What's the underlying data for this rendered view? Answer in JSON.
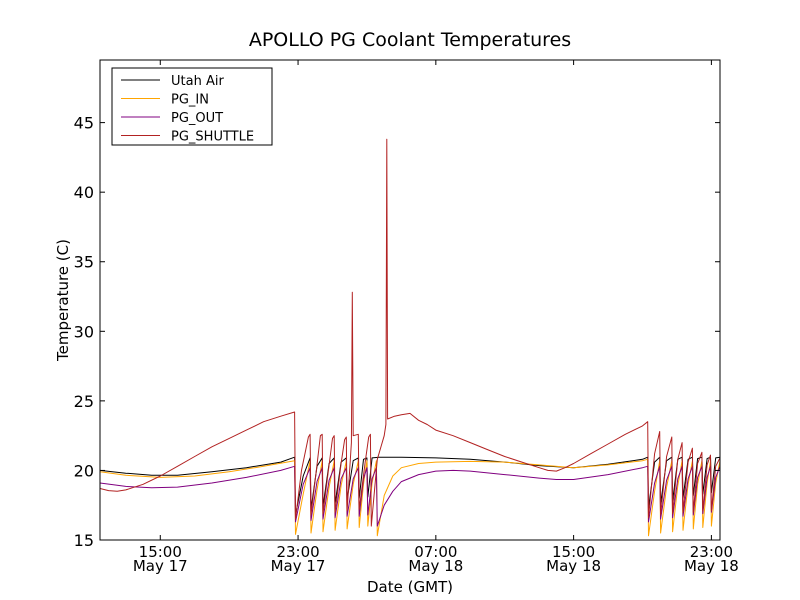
{
  "chart_data": {
    "type": "line",
    "title": "APOLLO PG Coolant Temperatures",
    "xlabel": "Date (GMT)",
    "ylabel": "Temperature (C)",
    "x_unit": "hours since May 17 00:00 GMT",
    "xlim": [
      11.5,
      47.5
    ],
    "ylim": [
      15,
      49.5
    ],
    "grid": false,
    "legend_position": "top-left",
    "x_ticks": [
      {
        "value": 15,
        "time": "15:00",
        "date": "May 17"
      },
      {
        "value": 23,
        "time": "23:00",
        "date": "May 17"
      },
      {
        "value": 31,
        "time": "07:00",
        "date": "May 18"
      },
      {
        "value": 39,
        "time": "15:00",
        "date": "May 18"
      },
      {
        "value": 47,
        "time": "23:00",
        "date": "May 18"
      }
    ],
    "y_ticks": [
      15,
      20,
      25,
      30,
      35,
      40,
      45
    ],
    "series": [
      {
        "name": "Utah Air",
        "color": "#000000",
        "points": [
          [
            11.5,
            20.0
          ],
          [
            13,
            19.8
          ],
          [
            14.5,
            19.65
          ],
          [
            16,
            19.65
          ],
          [
            18,
            19.9
          ],
          [
            20,
            20.2
          ],
          [
            22,
            20.6
          ],
          [
            22.8,
            20.95
          ],
          [
            22.85,
            16.8
          ],
          [
            23.3,
            19.6
          ],
          [
            23.7,
            20.9
          ],
          [
            23.75,
            17.2
          ],
          [
            24.1,
            20.3
          ],
          [
            24.4,
            20.9
          ],
          [
            24.45,
            17.4
          ],
          [
            24.8,
            20.5
          ],
          [
            25.1,
            20.9
          ],
          [
            25.15,
            17.6
          ],
          [
            25.5,
            20.6
          ],
          [
            25.8,
            20.9
          ],
          [
            25.85,
            17.9
          ],
          [
            26.2,
            20.7
          ],
          [
            26.5,
            20.9
          ],
          [
            26.55,
            18.0
          ],
          [
            26.8,
            20.8
          ],
          [
            27,
            20.9
          ],
          [
            27.05,
            18.1
          ],
          [
            27.3,
            20.9
          ],
          [
            27.7,
            20.95
          ],
          [
            29,
            20.95
          ],
          [
            31,
            20.9
          ],
          [
            33,
            20.8
          ],
          [
            35,
            20.6
          ],
          [
            37,
            20.35
          ],
          [
            39,
            20.2
          ],
          [
            41,
            20.45
          ],
          [
            43,
            20.8
          ],
          [
            43.3,
            20.95
          ],
          [
            43.35,
            17.3
          ],
          [
            43.7,
            20.6
          ],
          [
            44,
            20.95
          ],
          [
            44.05,
            17.6
          ],
          [
            44.4,
            20.7
          ],
          [
            44.7,
            20.95
          ],
          [
            44.75,
            17.8
          ],
          [
            45.05,
            20.8
          ],
          [
            45.3,
            20.95
          ],
          [
            45.35,
            18.0
          ],
          [
            45.65,
            20.8
          ],
          [
            45.9,
            20.95
          ],
          [
            45.95,
            18.2
          ],
          [
            46.2,
            20.85
          ],
          [
            46.45,
            20.95
          ],
          [
            46.5,
            18.3
          ],
          [
            46.75,
            20.85
          ],
          [
            46.95,
            20.95
          ],
          [
            47.0,
            18.4
          ],
          [
            47.25,
            20.9
          ],
          [
            47.5,
            20.95
          ]
        ]
      },
      {
        "name": "PG_IN",
        "color": "#ffa500",
        "points": [
          [
            11.5,
            19.9
          ],
          [
            13,
            19.65
          ],
          [
            15,
            19.5
          ],
          [
            17,
            19.6
          ],
          [
            19,
            19.9
          ],
          [
            21,
            20.3
          ],
          [
            22.8,
            20.7
          ],
          [
            22.85,
            15.4
          ],
          [
            23.3,
            18.3
          ],
          [
            23.7,
            20.7
          ],
          [
            23.75,
            15.5
          ],
          [
            24.1,
            18.6
          ],
          [
            24.4,
            20.7
          ],
          [
            24.45,
            15.6
          ],
          [
            24.8,
            18.8
          ],
          [
            25.1,
            20.7
          ],
          [
            25.15,
            15.7
          ],
          [
            25.5,
            18.9
          ],
          [
            25.8,
            20.7
          ],
          [
            25.85,
            15.8
          ],
          [
            26.2,
            19.0
          ],
          [
            26.5,
            20.7
          ],
          [
            26.55,
            15.9
          ],
          [
            26.8,
            19.0
          ],
          [
            27,
            20.7
          ],
          [
            27.05,
            16.0
          ],
          [
            27.3,
            19.1
          ],
          [
            27.55,
            20.7
          ],
          [
            27.6,
            15.3
          ],
          [
            28,
            18.2
          ],
          [
            28.5,
            19.6
          ],
          [
            29,
            20.2
          ],
          [
            30,
            20.5
          ],
          [
            31,
            20.6
          ],
          [
            33,
            20.65
          ],
          [
            35,
            20.6
          ],
          [
            37,
            20.4
          ],
          [
            39,
            20.2
          ],
          [
            41,
            20.4
          ],
          [
            43,
            20.7
          ],
          [
            43.3,
            20.8
          ],
          [
            43.35,
            15.3
          ],
          [
            43.7,
            18.5
          ],
          [
            44,
            20.7
          ],
          [
            44.05,
            15.5
          ],
          [
            44.4,
            18.8
          ],
          [
            44.7,
            20.7
          ],
          [
            44.75,
            15.6
          ],
          [
            45.05,
            18.9
          ],
          [
            45.3,
            20.7
          ],
          [
            45.35,
            15.7
          ],
          [
            45.65,
            19.0
          ],
          [
            45.9,
            20.7
          ],
          [
            45.95,
            15.8
          ],
          [
            46.2,
            19.0
          ],
          [
            46.45,
            20.7
          ],
          [
            46.5,
            15.9
          ],
          [
            46.75,
            19.1
          ],
          [
            46.95,
            20.7
          ],
          [
            47.0,
            16.0
          ],
          [
            47.25,
            19.1
          ],
          [
            47.5,
            20.7
          ]
        ]
      },
      {
        "name": "PG_OUT",
        "color": "#800080",
        "points": [
          [
            11.5,
            19.1
          ],
          [
            13,
            18.85
          ],
          [
            14.5,
            18.75
          ],
          [
            16,
            18.8
          ],
          [
            18,
            19.1
          ],
          [
            20,
            19.5
          ],
          [
            22,
            20.0
          ],
          [
            22.8,
            20.3
          ],
          [
            22.85,
            16.3
          ],
          [
            23.3,
            19.0
          ],
          [
            23.7,
            20.2
          ],
          [
            23.75,
            16.4
          ],
          [
            24.1,
            19.2
          ],
          [
            24.4,
            20.2
          ],
          [
            24.45,
            16.5
          ],
          [
            24.8,
            19.3
          ],
          [
            25.1,
            20.2
          ],
          [
            25.15,
            16.6
          ],
          [
            25.5,
            19.4
          ],
          [
            25.8,
            20.2
          ],
          [
            25.85,
            16.7
          ],
          [
            26.2,
            19.4
          ],
          [
            26.5,
            20.2
          ],
          [
            26.55,
            16.7
          ],
          [
            26.8,
            19.4
          ],
          [
            27,
            20.2
          ],
          [
            27.05,
            16.8
          ],
          [
            27.3,
            19.4
          ],
          [
            27.55,
            20.2
          ],
          [
            27.6,
            16.0
          ],
          [
            28,
            17.5
          ],
          [
            28.5,
            18.5
          ],
          [
            29,
            19.2
          ],
          [
            30,
            19.7
          ],
          [
            31,
            19.95
          ],
          [
            32,
            20.0
          ],
          [
            33,
            19.95
          ],
          [
            35,
            19.7
          ],
          [
            37,
            19.45
          ],
          [
            38,
            19.35
          ],
          [
            39,
            19.35
          ],
          [
            41,
            19.7
          ],
          [
            43,
            20.2
          ],
          [
            43.3,
            20.3
          ],
          [
            43.35,
            16.3
          ],
          [
            43.7,
            19.1
          ],
          [
            44,
            20.3
          ],
          [
            44.05,
            16.5
          ],
          [
            44.4,
            19.3
          ],
          [
            44.7,
            20.3
          ],
          [
            44.75,
            16.6
          ],
          [
            45.05,
            19.4
          ],
          [
            45.3,
            20.3
          ],
          [
            45.35,
            16.7
          ],
          [
            45.65,
            19.4
          ],
          [
            45.9,
            20.3
          ],
          [
            45.95,
            16.8
          ],
          [
            46.2,
            19.5
          ],
          [
            46.45,
            20.3
          ],
          [
            46.5,
            16.9
          ],
          [
            46.75,
            19.5
          ],
          [
            46.95,
            20.3
          ],
          [
            47.0,
            17.0
          ],
          [
            47.25,
            19.5
          ],
          [
            47.5,
            20.3
          ]
        ]
      },
      {
        "name": "PG_SHUTTLE",
        "color": "#b22222",
        "points": [
          [
            11.5,
            18.7
          ],
          [
            12,
            18.55
          ],
          [
            12.5,
            18.5
          ],
          [
            13,
            18.6
          ],
          [
            14,
            19.0
          ],
          [
            15,
            19.6
          ],
          [
            16,
            20.3
          ],
          [
            17,
            21.0
          ],
          [
            18,
            21.7
          ],
          [
            19,
            22.3
          ],
          [
            20,
            22.9
          ],
          [
            21,
            23.5
          ],
          [
            22,
            23.9
          ],
          [
            22.8,
            24.2
          ],
          [
            22.85,
            16.5
          ],
          [
            23.2,
            20.0
          ],
          [
            23.6,
            22.4
          ],
          [
            23.7,
            22.6
          ],
          [
            23.75,
            16.8
          ],
          [
            24.1,
            20.4
          ],
          [
            24.3,
            22.5
          ],
          [
            24.4,
            22.6
          ],
          [
            24.45,
            16.9
          ],
          [
            24.8,
            20.4
          ],
          [
            25.0,
            22.3
          ],
          [
            25.1,
            22.5
          ],
          [
            25.15,
            17.0
          ],
          [
            25.5,
            20.5
          ],
          [
            25.7,
            22.2
          ],
          [
            25.8,
            22.4
          ],
          [
            25.85,
            17.1
          ],
          [
            26.1,
            22.0
          ],
          [
            26.15,
            32.8
          ],
          [
            26.2,
            22.5
          ],
          [
            26.5,
            22.6
          ],
          [
            26.55,
            17.2
          ],
          [
            26.9,
            20.6
          ],
          [
            27.1,
            22.4
          ],
          [
            27.2,
            22.6
          ],
          [
            27.25,
            16.0
          ],
          [
            27.6,
            20.8
          ],
          [
            28.0,
            22.5
          ],
          [
            28.1,
            23.3
          ],
          [
            28.15,
            43.8
          ],
          [
            28.2,
            23.7
          ],
          [
            28.6,
            23.9
          ],
          [
            29,
            24.0
          ],
          [
            29.5,
            24.1
          ],
          [
            30,
            23.6
          ],
          [
            30.5,
            23.3
          ],
          [
            31,
            22.9
          ],
          [
            32,
            22.5
          ],
          [
            33,
            22.0
          ],
          [
            34,
            21.5
          ],
          [
            35,
            21.0
          ],
          [
            36,
            20.6
          ],
          [
            37,
            20.2
          ],
          [
            37.5,
            20.0
          ],
          [
            38,
            19.95
          ],
          [
            38.5,
            20.2
          ],
          [
            39,
            20.5
          ],
          [
            40,
            21.2
          ],
          [
            41,
            21.9
          ],
          [
            42,
            22.6
          ],
          [
            43,
            23.2
          ],
          [
            43.3,
            23.5
          ],
          [
            43.35,
            16.6
          ],
          [
            43.7,
            21.2
          ],
          [
            44,
            22.8
          ],
          [
            44.05,
            16.8
          ],
          [
            44.4,
            21.0
          ],
          [
            44.7,
            22.4
          ],
          [
            44.75,
            16.9
          ],
          [
            45.05,
            20.8
          ],
          [
            45.3,
            22.0
          ],
          [
            45.35,
            17.0
          ],
          [
            45.65,
            20.6
          ],
          [
            45.9,
            21.6
          ],
          [
            45.95,
            17.0
          ],
          [
            46.2,
            20.5
          ],
          [
            46.45,
            21.3
          ],
          [
            46.5,
            17.1
          ],
          [
            46.75,
            20.4
          ],
          [
            46.95,
            21.1
          ],
          [
            47.0,
            17.1
          ],
          [
            47.25,
            20.3
          ],
          [
            47.5,
            20.9
          ]
        ]
      }
    ]
  }
}
